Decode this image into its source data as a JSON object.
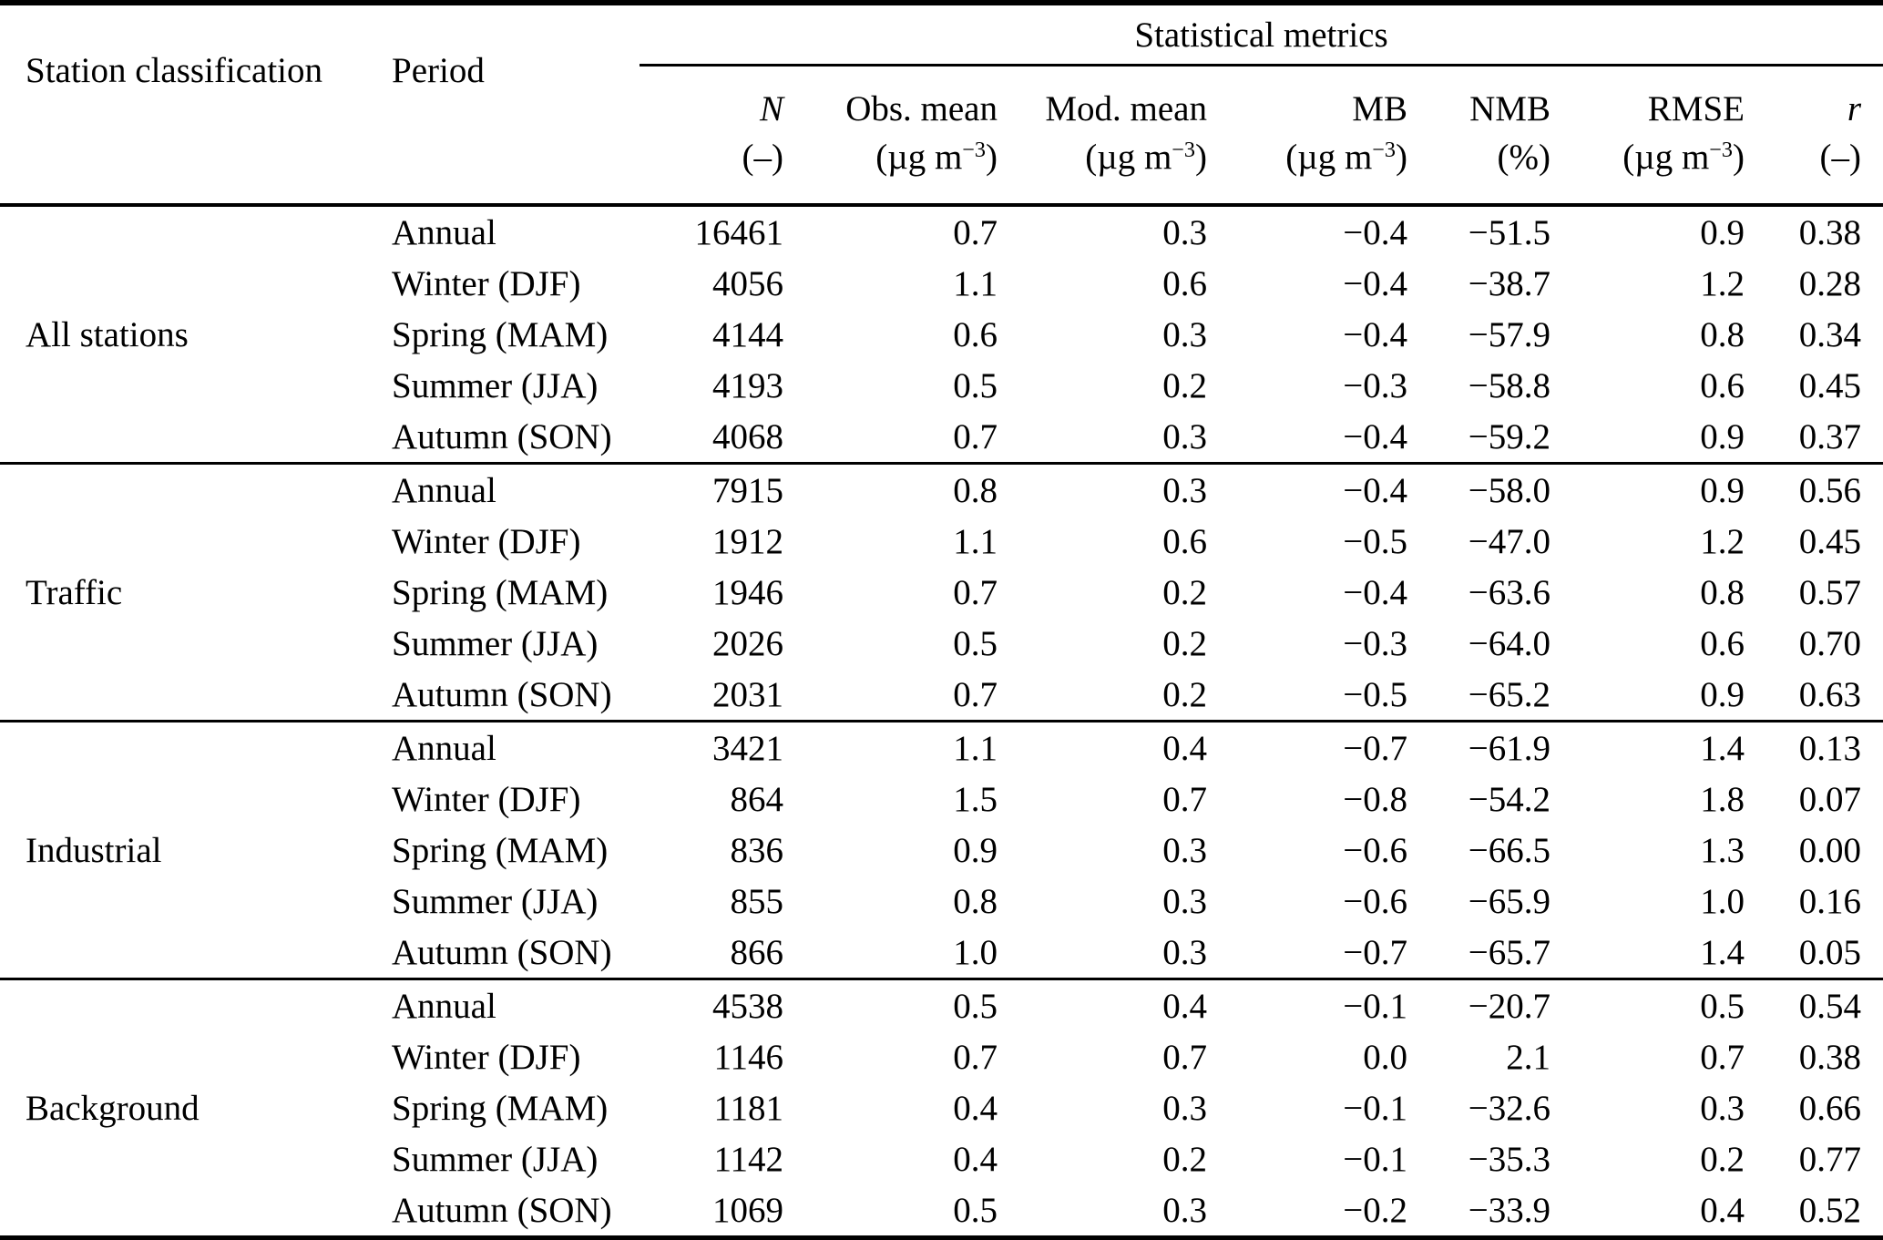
{
  "colors": {
    "text": "#000000",
    "background": "#ffffff",
    "rules": "#000000"
  },
  "table": {
    "col_headers": {
      "station_classification": "Station classification",
      "period": "Period",
      "metrics_group": "Statistical metrics",
      "metrics": [
        {
          "key": "n",
          "label": "N",
          "italic": true,
          "unit": "(–)"
        },
        {
          "key": "obs_mean",
          "label": "Obs. mean",
          "italic": false,
          "unit_pre": "(µg m",
          "unit_sup": "−3",
          "unit_post": ")"
        },
        {
          "key": "mod_mean",
          "label": "Mod. mean",
          "italic": false,
          "unit_pre": "(µg m",
          "unit_sup": "−3",
          "unit_post": ")"
        },
        {
          "key": "mb",
          "label": "MB",
          "italic": false,
          "unit_pre": "(µg m",
          "unit_sup": "−3",
          "unit_post": ")"
        },
        {
          "key": "nmb",
          "label": "NMB",
          "italic": false,
          "unit": "(%)"
        },
        {
          "key": "rmse",
          "label": "RMSE",
          "italic": false,
          "unit_pre": "(µg m",
          "unit_sup": "−3",
          "unit_post": ")"
        },
        {
          "key": "r",
          "label": "r",
          "italic": true,
          "unit": "(–)"
        }
      ]
    },
    "groups": [
      {
        "classification": "All stations",
        "rows": [
          {
            "period": "Annual",
            "values": [
              "16461",
              "0.7",
              "0.3",
              "−0.4",
              "−51.5",
              "0.9",
              "0.38"
            ]
          },
          {
            "period": "Winter (DJF)",
            "values": [
              "4056",
              "1.1",
              "0.6",
              "−0.4",
              "−38.7",
              "1.2",
              "0.28"
            ]
          },
          {
            "period": "Spring (MAM)",
            "values": [
              "4144",
              "0.6",
              "0.3",
              "−0.4",
              "−57.9",
              "0.8",
              "0.34"
            ]
          },
          {
            "period": "Summer (JJA)",
            "values": [
              "4193",
              "0.5",
              "0.2",
              "−0.3",
              "−58.8",
              "0.6",
              "0.45"
            ]
          },
          {
            "period": "Autumn (SON)",
            "values": [
              "4068",
              "0.7",
              "0.3",
              "−0.4",
              "−59.2",
              "0.9",
              "0.37"
            ]
          }
        ]
      },
      {
        "classification": "Traffic",
        "rows": [
          {
            "period": "Annual",
            "values": [
              "7915",
              "0.8",
              "0.3",
              "−0.4",
              "−58.0",
              "0.9",
              "0.56"
            ]
          },
          {
            "period": "Winter (DJF)",
            "values": [
              "1912",
              "1.1",
              "0.6",
              "−0.5",
              "−47.0",
              "1.2",
              "0.45"
            ]
          },
          {
            "period": "Spring (MAM)",
            "values": [
              "1946",
              "0.7",
              "0.2",
              "−0.4",
              "−63.6",
              "0.8",
              "0.57"
            ]
          },
          {
            "period": "Summer (JJA)",
            "values": [
              "2026",
              "0.5",
              "0.2",
              "−0.3",
              "−64.0",
              "0.6",
              "0.70"
            ]
          },
          {
            "period": "Autumn (SON)",
            "values": [
              "2031",
              "0.7",
              "0.2",
              "−0.5",
              "−65.2",
              "0.9",
              "0.63"
            ]
          }
        ]
      },
      {
        "classification": "Industrial",
        "rows": [
          {
            "period": "Annual",
            "values": [
              "3421",
              "1.1",
              "0.4",
              "−0.7",
              "−61.9",
              "1.4",
              "0.13"
            ]
          },
          {
            "period": "Winter (DJF)",
            "values": [
              "864",
              "1.5",
              "0.7",
              "−0.8",
              "−54.2",
              "1.8",
              "0.07"
            ]
          },
          {
            "period": "Spring (MAM)",
            "values": [
              "836",
              "0.9",
              "0.3",
              "−0.6",
              "−66.5",
              "1.3",
              "0.00"
            ]
          },
          {
            "period": "Summer (JJA)",
            "values": [
              "855",
              "0.8",
              "0.3",
              "−0.6",
              "−65.9",
              "1.0",
              "0.16"
            ]
          },
          {
            "period": "Autumn (SON)",
            "values": [
              "866",
              "1.0",
              "0.3",
              "−0.7",
              "−65.7",
              "1.4",
              "0.05"
            ]
          }
        ]
      },
      {
        "classification": "Background",
        "rows": [
          {
            "period": "Annual",
            "values": [
              "4538",
              "0.5",
              "0.4",
              "−0.1",
              "−20.7",
              "0.5",
              "0.54"
            ]
          },
          {
            "period": "Winter (DJF)",
            "values": [
              "1146",
              "0.7",
              "0.7",
              "0.0",
              "2.1",
              "0.7",
              "0.38"
            ]
          },
          {
            "period": "Spring (MAM)",
            "values": [
              "1181",
              "0.4",
              "0.3",
              "−0.1",
              "−32.6",
              "0.3",
              "0.66"
            ]
          },
          {
            "period": "Summer (JJA)",
            "values": [
              "1142",
              "0.4",
              "0.2",
              "−0.1",
              "−35.3",
              "0.2",
              "0.77"
            ]
          },
          {
            "period": "Autumn (SON)",
            "values": [
              "1069",
              "0.5",
              "0.3",
              "−0.2",
              "−33.9",
              "0.4",
              "0.52"
            ]
          }
        ]
      }
    ]
  }
}
